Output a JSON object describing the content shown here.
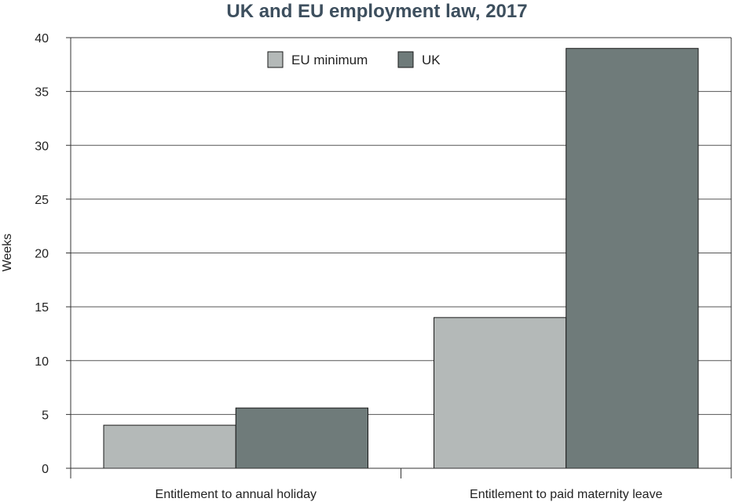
{
  "chart_data": {
    "type": "bar",
    "title": "UK and EU employment law, 2017",
    "xlabel": "",
    "ylabel": "Weeks",
    "categories": [
      "Entitlement to annual holiday",
      "Entitlement to paid maternity leave"
    ],
    "series": [
      {
        "name": "EU minimum",
        "values": [
          4,
          14
        ],
        "color": "#b4b9b8"
      },
      {
        "name": "UK",
        "values": [
          5.6,
          39
        ],
        "color": "#6f7b7a"
      }
    ],
    "ylim": [
      0,
      40
    ],
    "yticks": [
      0,
      5,
      10,
      15,
      20,
      25,
      30,
      35,
      40
    ],
    "grid": true,
    "legend_position": "top-center"
  }
}
